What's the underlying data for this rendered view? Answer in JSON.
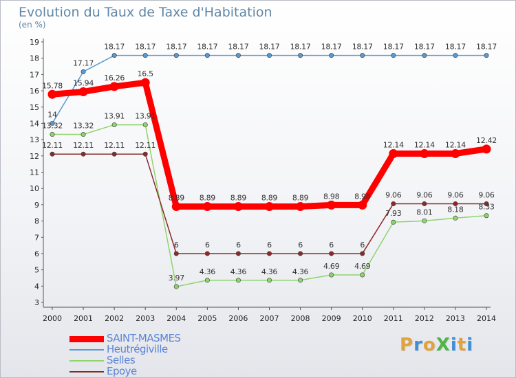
{
  "title": "Evolution du Taux de Taxe d'Habitation",
  "unit_label": "(en %)",
  "logo": {
    "text": "ProXiti",
    "letters": [
      {
        "ch": "P",
        "color": "#e2a23b"
      },
      {
        "ch": "r",
        "color": "#3f8fd6"
      },
      {
        "ch": "o",
        "color": "#e2a23b"
      },
      {
        "ch": "X",
        "color": "#4fb548"
      },
      {
        "ch": "i",
        "color": "#3f8fd6"
      },
      {
        "ch": "t",
        "color": "#e2a23b"
      },
      {
        "ch": "i",
        "color": "#3f8fd6"
      }
    ]
  },
  "chart_data": {
    "type": "line",
    "title": "Evolution du Taux de Taxe d'Habitation",
    "ylabel": "(en %)",
    "xlabel": "",
    "ylim": [
      3,
      19
    ],
    "y_ticks": [
      3,
      4,
      5,
      6,
      7,
      8,
      9,
      10,
      11,
      12,
      13,
      14,
      15,
      16,
      17,
      18,
      19
    ],
    "grid": false,
    "legend_position": "bottom-left",
    "x": [
      "2000",
      "2001",
      "2002",
      "2003",
      "2004",
      "2005",
      "2006",
      "2007",
      "2008",
      "2009",
      "2010",
      "2011",
      "2012",
      "2013",
      "2014"
    ],
    "series": [
      {
        "name": "SAINT-MASMES",
        "color": "#ff0000",
        "values": [
          15.78,
          15.94,
          16.26,
          16.5,
          8.89,
          8.89,
          8.89,
          8.89,
          8.89,
          8.98,
          8.98,
          12.14,
          12.14,
          12.14,
          12.42
        ],
        "labels": [
          "15.78",
          "15.94",
          "16.26",
          "16.5",
          "8.89",
          "8.89",
          "8.89",
          "8.89",
          "8.89",
          "8.98",
          "8.98",
          "12.14",
          "12.14",
          "12.14",
          "12.42"
        ]
      },
      {
        "name": "Heutrégiville",
        "color": "#5b9ad1",
        "values": [
          14,
          17.17,
          18.17,
          18.17,
          18.17,
          18.17,
          18.17,
          18.17,
          18.17,
          18.17,
          18.17,
          18.17,
          18.17,
          18.17,
          18.17
        ],
        "labels": [
          "14",
          "17.17",
          "18.17",
          "18.17",
          "18.17",
          "18.17",
          "18.17",
          "18.17",
          "18.17",
          "18.17",
          "18.17",
          "18.17",
          "18.17",
          "18.17",
          "18.17"
        ]
      },
      {
        "name": "Selles",
        "color": "#8fd46c",
        "values": [
          13.32,
          13.32,
          13.91,
          13.91,
          3.97,
          4.36,
          4.36,
          4.36,
          4.36,
          4.69,
          4.69,
          7.93,
          8.01,
          8.18,
          8.33
        ],
        "labels": [
          "13.32",
          "13.32",
          "13.91",
          "13.91",
          "3.97",
          "4.36",
          "4.36",
          "4.36",
          "4.36",
          "4.69",
          "4.69",
          "7.93",
          "8.01",
          "8.18",
          "8.33"
        ]
      },
      {
        "name": "Epoye",
        "color": "#8b2a2a",
        "values": [
          12.11,
          12.11,
          12.11,
          12.11,
          6,
          6,
          6,
          6,
          6,
          6,
          6,
          9.06,
          9.06,
          9.06,
          9.06
        ],
        "labels": [
          "12.11",
          "12.11",
          "12.11",
          "12.11",
          "6",
          "6",
          "6",
          "6",
          "6",
          "6",
          "6",
          "9.06",
          "9.06",
          "9.06",
          "9.06"
        ]
      }
    ]
  }
}
